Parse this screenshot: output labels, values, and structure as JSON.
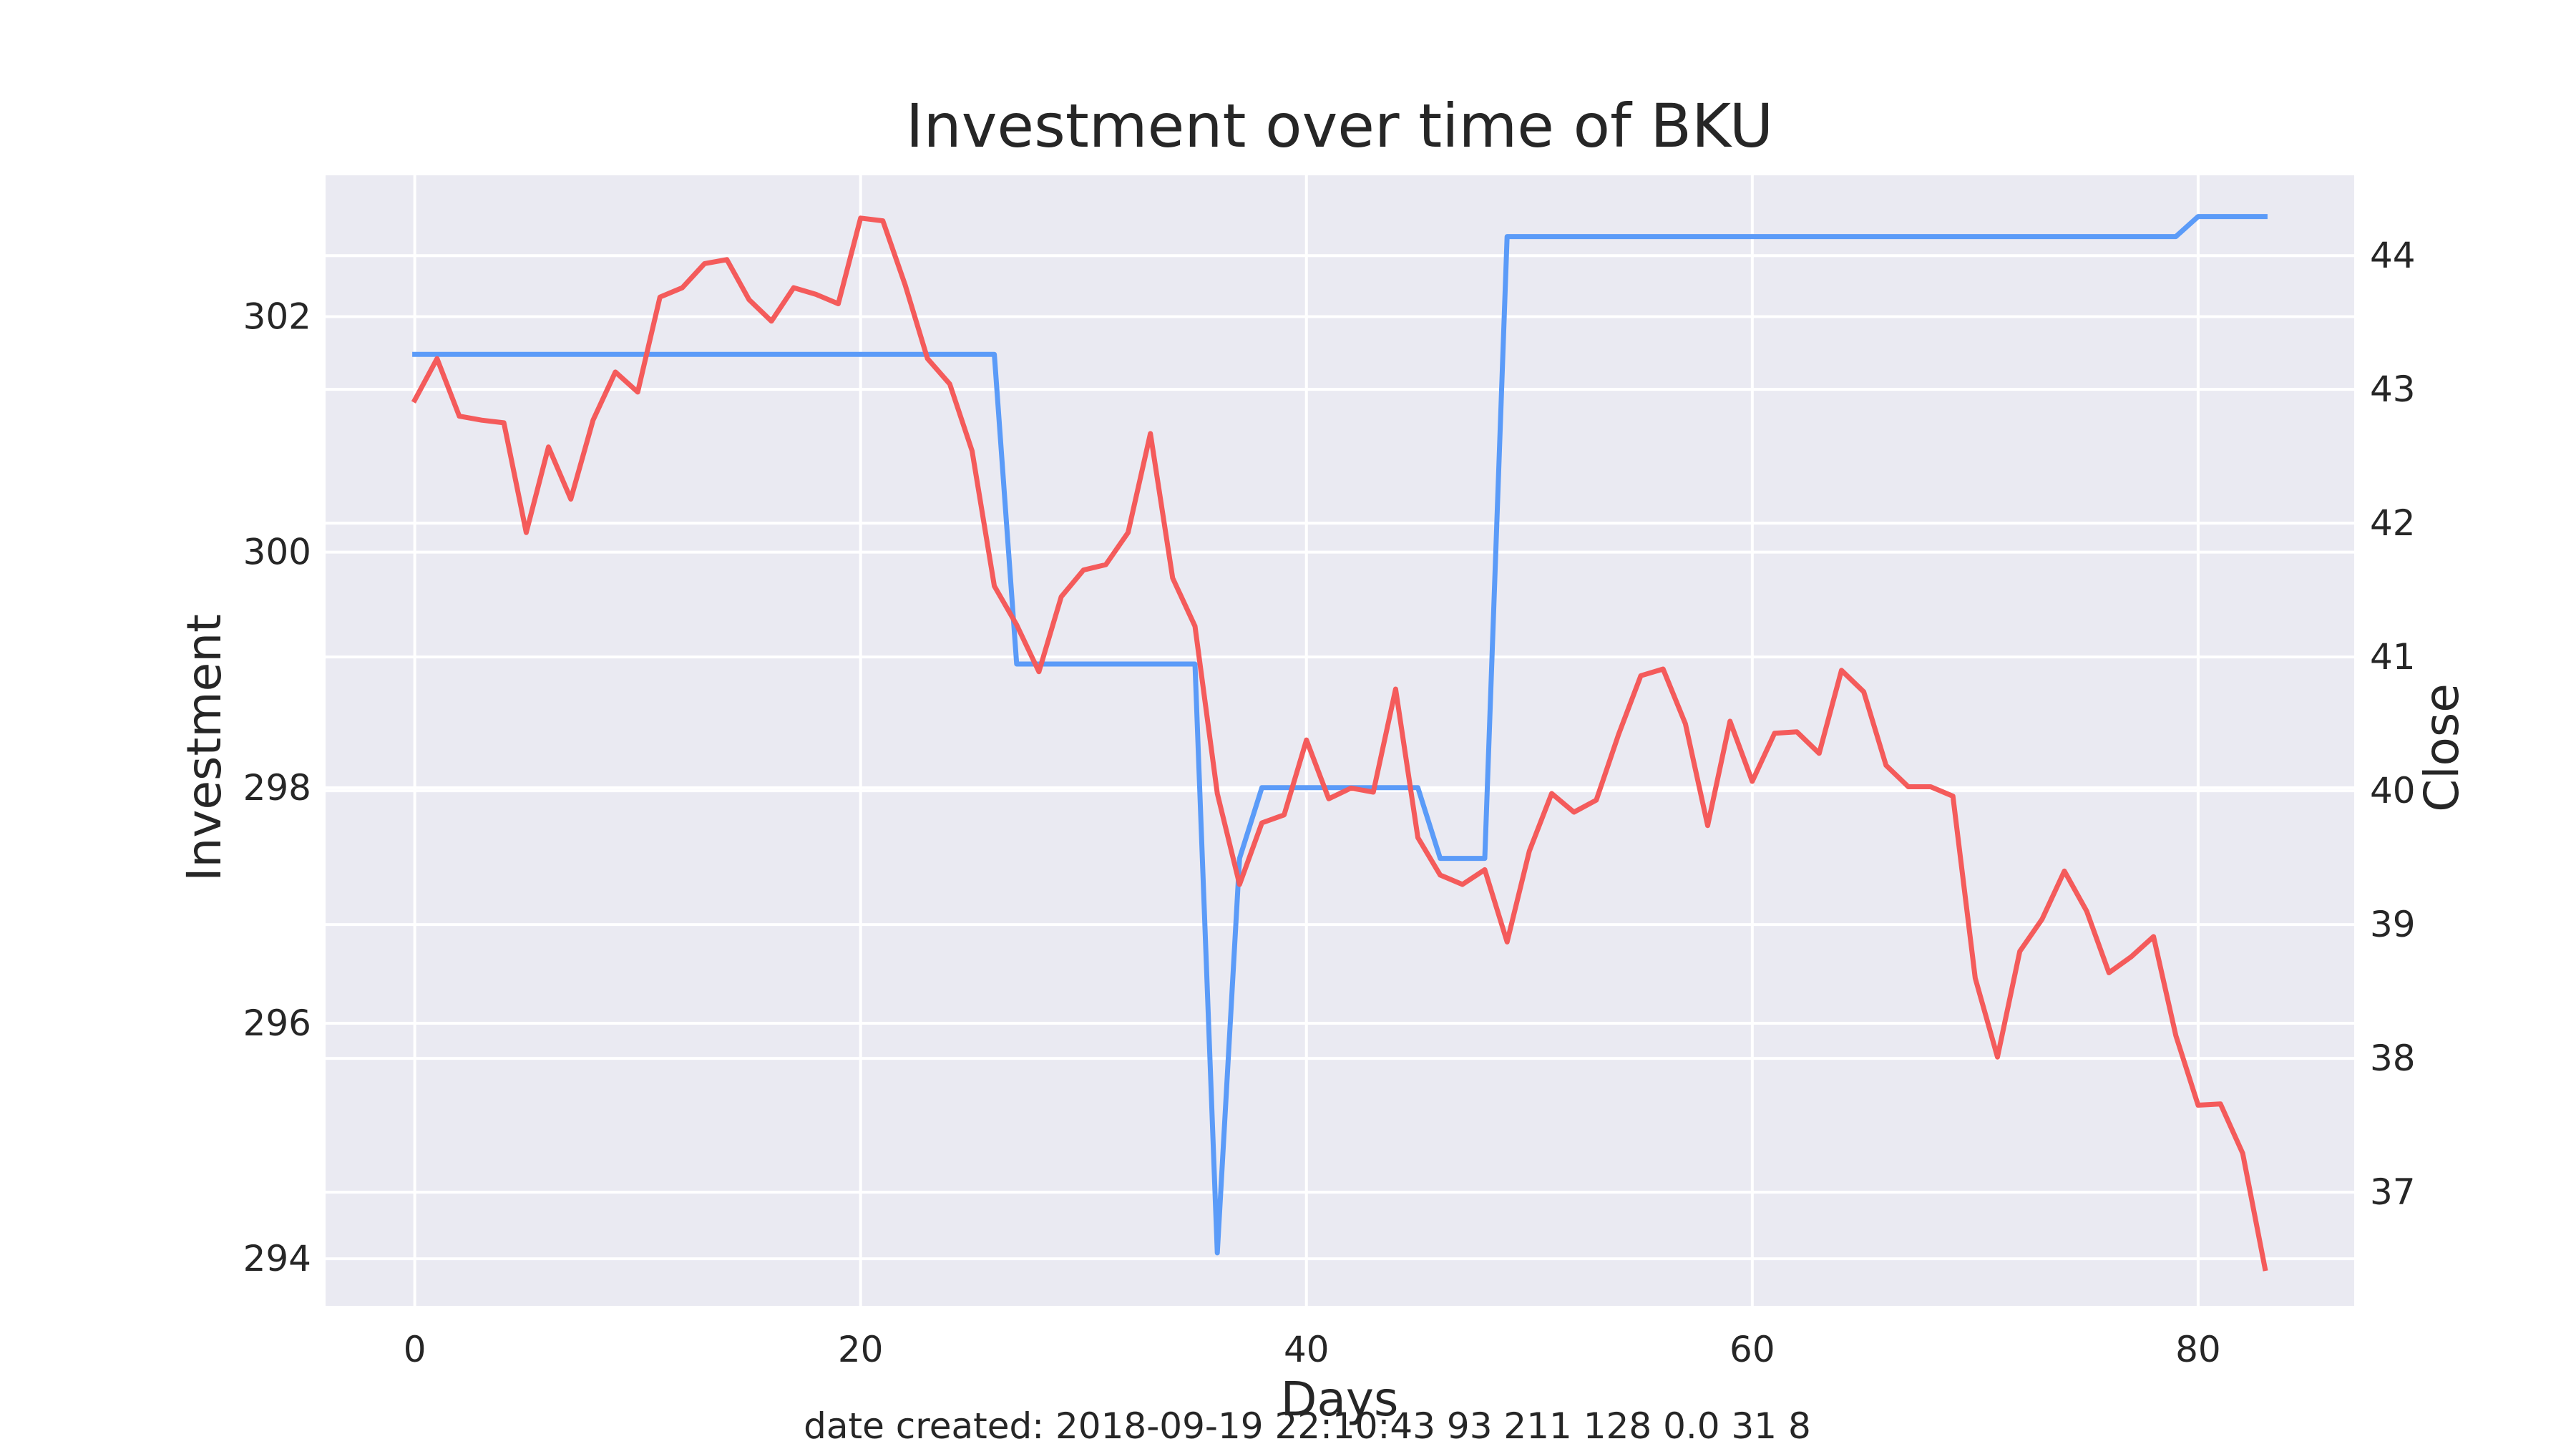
{
  "colors": {
    "plot_background": "#eaeaf2",
    "investment": "#5b9bf8",
    "close": "#f45b5b",
    "text": "#262626"
  },
  "chart_data": {
    "type": "line",
    "title": "Investment over time of BKU",
    "xlabel": "Days",
    "ylabel_left": "Investment",
    "ylabel_right": "Close",
    "footer": "date created: 2018-09-19 22:10:43 93 211 128 0.0 31 8",
    "grid": true,
    "xlim": [
      -4,
      87
    ],
    "ylim_left": [
      293.6,
      303.2
    ],
    "ylim_right": [
      36.15,
      44.6
    ],
    "x_ticks": [
      0,
      20,
      40,
      60,
      80
    ],
    "y_left_ticks": [
      294,
      296,
      298,
      300,
      302
    ],
    "y_right_ticks": [
      37,
      38,
      39,
      40,
      41,
      42,
      43,
      44
    ],
    "series": [
      {
        "name": "Investment",
        "axis": "left",
        "x": [
          0,
          26,
          27,
          35,
          36,
          37,
          38,
          45,
          46,
          48,
          49,
          79,
          80,
          83
        ],
        "values": [
          301.68,
          301.68,
          299.05,
          299.05,
          294.05,
          297.4,
          298.0,
          298.0,
          297.4,
          297.4,
          302.68,
          302.68,
          302.85,
          302.85
        ]
      },
      {
        "name": "Close",
        "axis": "right",
        "x": [
          0,
          1,
          2,
          3,
          4,
          5,
          6,
          7,
          8,
          9,
          10,
          11,
          12,
          13,
          14,
          15,
          16,
          17,
          18,
          19,
          20,
          21,
          22,
          23,
          24,
          25,
          26,
          27,
          28,
          29,
          30,
          31,
          32,
          33,
          34,
          35,
          36,
          37,
          38,
          39,
          40,
          41,
          42,
          43,
          44,
          45,
          46,
          47,
          48,
          49,
          50,
          51,
          52,
          53,
          54,
          55,
          56,
          57,
          58,
          59,
          60,
          61,
          62,
          63,
          64,
          65,
          66,
          67,
          68,
          69,
          70,
          71,
          72,
          73,
          74,
          75,
          76,
          77,
          78,
          79,
          80,
          81,
          82,
          83
        ],
        "values": [
          42.92,
          43.23,
          42.8,
          42.77,
          42.75,
          41.93,
          42.57,
          42.18,
          42.77,
          43.13,
          42.98,
          43.69,
          43.76,
          43.94,
          43.97,
          43.67,
          43.51,
          43.76,
          43.71,
          43.64,
          44.28,
          44.26,
          43.78,
          43.23,
          43.04,
          42.54,
          41.53,
          41.24,
          40.89,
          41.45,
          41.65,
          41.69,
          41.93,
          42.67,
          41.59,
          41.23,
          39.98,
          39.3,
          39.76,
          39.82,
          40.38,
          39.94,
          40.02,
          39.99,
          40.76,
          39.65,
          39.37,
          39.3,
          39.41,
          38.87,
          39.55,
          39.98,
          39.84,
          39.93,
          40.42,
          40.86,
          40.91,
          40.5,
          39.74,
          40.52,
          40.07,
          40.43,
          40.44,
          40.28,
          40.9,
          40.74,
          40.19,
          40.03,
          40.03,
          39.96,
          38.6,
          38.01,
          38.8,
          39.04,
          39.4,
          39.1,
          38.64,
          38.76,
          38.91,
          38.17,
          37.65,
          37.66,
          37.29,
          36.43
        ]
      }
    ]
  }
}
